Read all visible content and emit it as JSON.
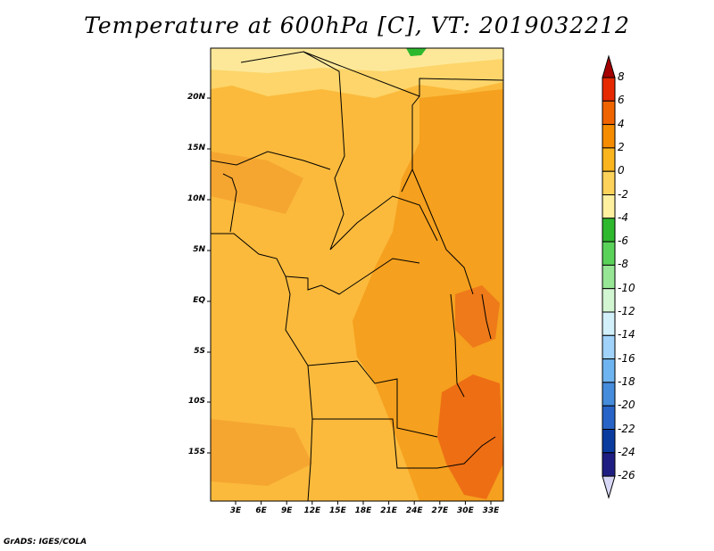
{
  "title": "Temperature at 600hPa [C], VT: 2019032212",
  "footer": "GrADS: IGES/COLA",
  "map": {
    "lat_ticks": [
      "20N",
      "15N",
      "10N",
      "5N",
      "EQ",
      "5S",
      "10S",
      "15S"
    ],
    "lon_ticks": [
      "3E",
      "6E",
      "9E",
      "12E",
      "15E",
      "18E",
      "21E",
      "24E",
      "27E",
      "30E",
      "33E"
    ]
  },
  "colorbar": {
    "labels": [
      "8",
      "6",
      "4",
      "2",
      "0",
      "-2",
      "-4",
      "-6",
      "-8",
      "-10",
      "-12",
      "-14",
      "-16",
      "-18",
      "-20",
      "-22",
      "-24",
      "-26"
    ],
    "colors": [
      "#a50000",
      "#e62800",
      "#f06400",
      "#f58c00",
      "#fab41e",
      "#fcd25a",
      "#fff0a0",
      "#2eb82e",
      "#5ad25a",
      "#96e696",
      "#d2f5d2",
      "#d2f0fa",
      "#a0d2fa",
      "#6eb4f0",
      "#468cdc",
      "#2864c8",
      "#0a3ca0",
      "#1e1e82",
      "#d7d7f5"
    ]
  }
}
